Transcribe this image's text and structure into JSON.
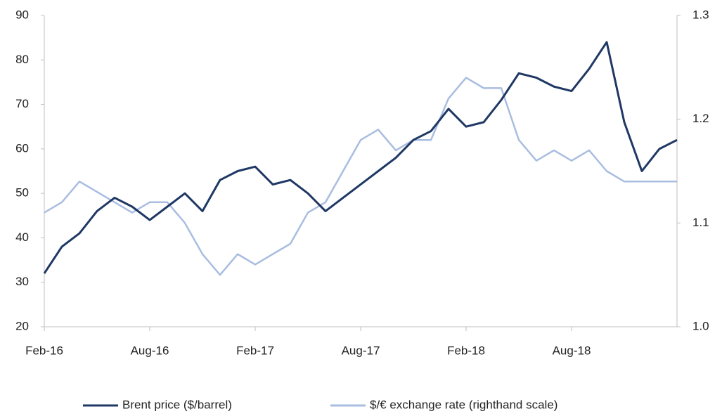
{
  "chart_data": {
    "type": "line",
    "x": [
      "2016-02",
      "2016-03",
      "2016-04",
      "2016-05",
      "2016-06",
      "2016-07",
      "2016-08",
      "2016-09",
      "2016-10",
      "2016-11",
      "2016-12",
      "2017-01",
      "2017-02",
      "2017-03",
      "2017-04",
      "2017-05",
      "2017-06",
      "2017-07",
      "2017-08",
      "2017-09",
      "2017-10",
      "2017-11",
      "2017-12",
      "2018-01",
      "2018-02",
      "2018-03",
      "2018-04",
      "2018-05",
      "2018-06",
      "2018-07",
      "2018-08",
      "2018-09",
      "2018-10",
      "2018-11",
      "2018-12",
      "2019-01",
      "2019-02"
    ],
    "xlim": [
      "2016-02",
      "2019-02"
    ],
    "xticks": [
      {
        "value": "2016-02",
        "label": "Feb-16"
      },
      {
        "value": "2016-08",
        "label": "Aug-16"
      },
      {
        "value": "2017-02",
        "label": "Feb-17"
      },
      {
        "value": "2017-08",
        "label": "Aug-17"
      },
      {
        "value": "2018-02",
        "label": "Feb-18"
      },
      {
        "value": "2018-08",
        "label": "Aug-18"
      }
    ],
    "series": [
      {
        "name": "Brent price ($/barrel)",
        "color": "#1f3864",
        "values": [
          32,
          38,
          41,
          46,
          49,
          47,
          44,
          47,
          50,
          46,
          53,
          55,
          56,
          52,
          53,
          50,
          46,
          49,
          52,
          55,
          58,
          62,
          64,
          69,
          65,
          66,
          71,
          77,
          76,
          74,
          73,
          78,
          84,
          66,
          55,
          60,
          62
        ]
      },
      {
        "name": "$/€ exchange rate (righthand scale)",
        "color": "#a9bde0",
        "axis": "y2",
        "values": [
          1.11,
          1.12,
          1.14,
          1.13,
          1.12,
          1.11,
          1.12,
          1.12,
          1.1,
          1.07,
          1.05,
          1.07,
          1.06,
          1.07,
          1.08,
          1.11,
          1.12,
          1.15,
          1.18,
          1.19,
          1.17,
          1.18,
          1.18,
          1.22,
          1.24,
          1.23,
          1.23,
          1.18,
          1.16,
          1.17,
          1.16,
          1.17,
          1.15,
          1.14,
          1.14,
          1.14,
          1.14
        ]
      }
    ],
    "ylim": [
      20,
      90
    ],
    "yticks": [
      20,
      30,
      40,
      50,
      60,
      70,
      80,
      90
    ],
    "y2lim": [
      1.0,
      1.3
    ],
    "y2ticks": [
      {
        "value": 1.0,
        "label": "1.0"
      },
      1.1,
      1.2,
      1.3
    ],
    "grid": false,
    "legend": "bottom"
  }
}
